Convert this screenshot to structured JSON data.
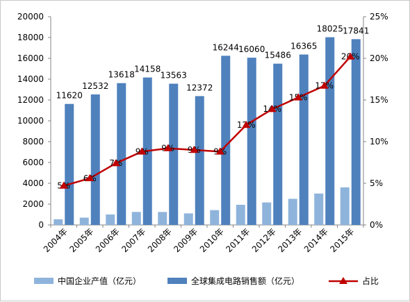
{
  "chart_data": {
    "type": "bar",
    "categories": [
      "2004年",
      "2005年",
      "2006年",
      "2007年",
      "2008年",
      "2009年",
      "2010年",
      "2011年",
      "2012年",
      "2013年",
      "2014年",
      "2015年"
    ],
    "series": [
      {
        "name": "中国企业产值（亿元）",
        "kind": "bar",
        "axis": "left",
        "color": "#8fb4dc",
        "values": [
          545,
          702,
          1006,
          1251,
          1246,
          1109,
          1424,
          1935,
          2159,
          2509,
          3015,
          3610
        ]
      },
      {
        "name": "全球集成电路销售额（亿元）",
        "kind": "bar",
        "axis": "left",
        "color": "#4f81bd",
        "values": [
          11620,
          12532,
          13618,
          14158,
          13563,
          12372,
          16244,
          16060,
          15486,
          16365,
          18025,
          17841
        ],
        "data_labels": [
          "11620",
          "12532",
          "13618",
          "14158",
          "13563",
          "12372",
          "16244",
          "16060",
          "15486",
          "16365",
          "18025",
          "17841"
        ]
      },
      {
        "name": "占比",
        "kind": "line",
        "axis": "right",
        "color": "#c00000",
        "values": [
          4.7,
          5.6,
          7.4,
          8.8,
          9.2,
          9.0,
          8.8,
          12.0,
          13.9,
          15.3,
          16.7,
          20.2
        ],
        "data_labels": [
          "5%",
          "6%",
          "7%",
          "9%",
          "9%",
          "9%",
          "9%",
          "12%",
          "14%",
          "15%",
          "17%",
          "20%"
        ]
      }
    ],
    "y_left": {
      "min": 0,
      "max": 20000,
      "step": 2000,
      "tick_labels": [
        "0",
        "2000",
        "4000",
        "6000",
        "8000",
        "10000",
        "12000",
        "14000",
        "16000",
        "18000",
        "20000"
      ]
    },
    "y_right": {
      "min": 0,
      "max": 25,
      "step": 5,
      "tick_labels": [
        "0%",
        "5%",
        "10%",
        "15%",
        "20%",
        "25%"
      ]
    },
    "grid": false,
    "legend_position": "bottom",
    "title": "",
    "xlabel": "",
    "ylabel": ""
  }
}
